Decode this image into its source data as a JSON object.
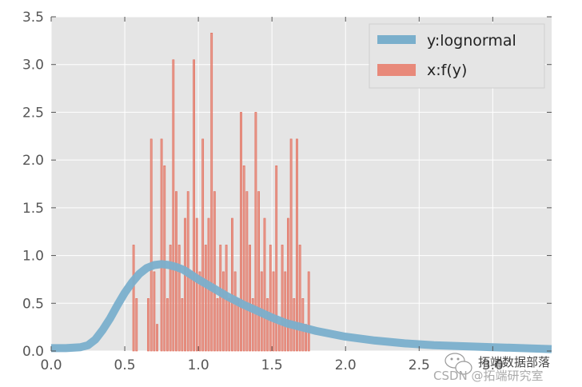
{
  "chart_data": {
    "type": "bar",
    "title": "",
    "xlabel": "",
    "ylabel": "",
    "xlim": [
      0.0,
      3.4
    ],
    "ylim": [
      0.0,
      3.5
    ],
    "xticks": [
      0.0,
      0.5,
      1.0,
      1.5,
      2.0,
      2.5,
      3.0
    ],
    "xtick_labels": [
      "0.0",
      "0.5",
      "1.0",
      "1.5",
      "2.0",
      "2.5",
      "3.0"
    ],
    "yticks": [
      0.0,
      0.5,
      1.0,
      1.5,
      2.0,
      2.5,
      3.0,
      3.5
    ],
    "ytick_labels": [
      "0.0",
      "0.5",
      "1.0",
      "1.5",
      "2.0",
      "2.5",
      "3.0",
      "3.5"
    ],
    "grid": true,
    "background": "#e5e5e5",
    "legend_position": "top-right",
    "series": [
      {
        "name": "y:lognormal",
        "kind": "line",
        "color": "#7aafcc",
        "x": [
          0.0,
          0.1,
          0.2,
          0.25,
          0.3,
          0.35,
          0.4,
          0.45,
          0.5,
          0.55,
          0.6,
          0.65,
          0.7,
          0.75,
          0.8,
          0.85,
          0.9,
          0.95,
          1.0,
          1.1,
          1.2,
          1.3,
          1.4,
          1.5,
          1.6,
          1.7,
          1.8,
          1.9,
          2.0,
          2.2,
          2.4,
          2.6,
          2.8,
          3.0,
          3.2,
          3.4
        ],
        "y": [
          0.03,
          0.03,
          0.04,
          0.06,
          0.12,
          0.22,
          0.34,
          0.48,
          0.61,
          0.72,
          0.81,
          0.87,
          0.9,
          0.91,
          0.9,
          0.88,
          0.85,
          0.8,
          0.75,
          0.66,
          0.57,
          0.49,
          0.42,
          0.35,
          0.29,
          0.25,
          0.21,
          0.18,
          0.15,
          0.11,
          0.08,
          0.06,
          0.05,
          0.04,
          0.03,
          0.02
        ]
      },
      {
        "name": "x:f(y)",
        "kind": "bar",
        "color": "#e8897a",
        "x": [
          0.56,
          0.58,
          0.66,
          0.68,
          0.7,
          0.72,
          0.75,
          0.77,
          0.79,
          0.81,
          0.83,
          0.85,
          0.87,
          0.89,
          0.91,
          0.93,
          0.95,
          0.97,
          0.99,
          1.01,
          1.03,
          1.05,
          1.07,
          1.09,
          1.11,
          1.13,
          1.15,
          1.17,
          1.19,
          1.21,
          1.23,
          1.25,
          1.27,
          1.29,
          1.31,
          1.33,
          1.35,
          1.37,
          1.39,
          1.41,
          1.43,
          1.45,
          1.47,
          1.49,
          1.51,
          1.53,
          1.55,
          1.57,
          1.59,
          1.61,
          1.63,
          1.65,
          1.67,
          1.69,
          1.71,
          1.73,
          1.75
        ],
        "y": [
          1.11,
          0.55,
          0.55,
          2.22,
          0.83,
          0.28,
          2.22,
          1.94,
          0.55,
          1.11,
          3.05,
          1.67,
          1.11,
          0.55,
          1.39,
          1.67,
          0.83,
          3.05,
          1.39,
          0.83,
          2.22,
          1.11,
          1.39,
          3.33,
          1.67,
          0.55,
          1.11,
          0.83,
          1.11,
          0.55,
          1.39,
          0.83,
          0.55,
          2.5,
          1.94,
          1.67,
          1.11,
          0.55,
          2.5,
          1.67,
          0.83,
          1.39,
          0.55,
          1.11,
          0.83,
          1.94,
          0.28,
          1.11,
          0.83,
          1.39,
          2.22,
          0.55,
          2.22,
          1.11,
          0.55,
          0.28,
          0.83
        ]
      }
    ]
  },
  "watermark": {
    "line1": "拓端数据部落",
    "line2": "CSDN @拓端研究室"
  }
}
